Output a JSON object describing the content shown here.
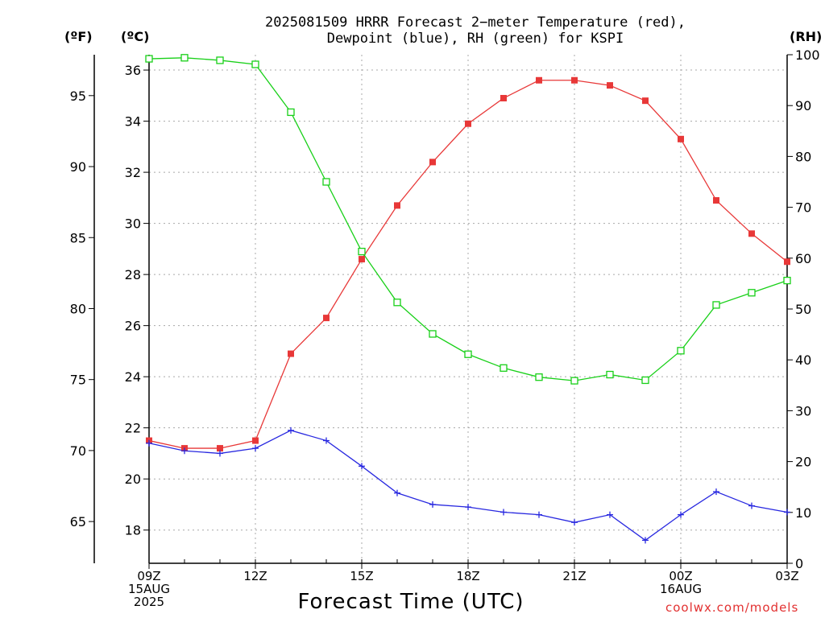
{
  "title_line1": "2025081509 HRRR Forecast 2−meter Temperature (red),",
  "title_line2": "Dewpoint (blue), RH (green) for KSPI",
  "units": {
    "f": "(ºF)",
    "c": "(ºC)",
    "rh": "(RH)"
  },
  "xlabel": "Forecast Time (UTC)",
  "credit": "coolwx.com/models",
  "colors": {
    "temperature": "#e83838",
    "dewpoint": "#2828e0",
    "rh": "#18d018",
    "grid": "#a8a8a8"
  },
  "chart_data": {
    "type": "line",
    "grid": true,
    "x_ticks": [
      {
        "i": 0,
        "lines": [
          "09Z",
          "15AUG",
          "2025"
        ]
      },
      {
        "i": 3,
        "lines": [
          "12Z"
        ]
      },
      {
        "i": 6,
        "lines": [
          "15Z"
        ]
      },
      {
        "i": 9,
        "lines": [
          "18Z"
        ]
      },
      {
        "i": 12,
        "lines": [
          "21Z"
        ]
      },
      {
        "i": 15,
        "lines": [
          "00Z",
          "16AUG"
        ]
      },
      {
        "i": 18,
        "lines": [
          "03Z"
        ]
      }
    ],
    "hours": [
      "09Z",
      "10Z",
      "11Z",
      "12Z",
      "13Z",
      "14Z",
      "15Z",
      "16Z",
      "17Z",
      "18Z",
      "19Z",
      "20Z",
      "21Z",
      "22Z",
      "23Z",
      "00Z",
      "01Z",
      "02Z",
      "03Z"
    ],
    "axes": {
      "celsius": {
        "range": [
          16.7,
          36.6
        ],
        "ticks": [
          18,
          20,
          22,
          24,
          26,
          28,
          30,
          32,
          34,
          36
        ]
      },
      "fahrenheit": {
        "ticks": [
          65,
          70,
          75,
          80,
          85,
          90,
          95
        ]
      },
      "rh": {
        "range": [
          0,
          100
        ],
        "ticks": [
          0,
          10,
          20,
          30,
          40,
          50,
          60,
          70,
          80,
          90,
          100
        ]
      }
    },
    "series": [
      {
        "key": "temperature",
        "axis": "celsius",
        "marker": "filled-square",
        "values": [
          21.5,
          21.2,
          21.2,
          21.5,
          24.9,
          26.3,
          28.6,
          30.7,
          32.4,
          33.9,
          34.9,
          35.6,
          35.6,
          35.4,
          34.8,
          33.3,
          30.9,
          29.6,
          28.5
        ]
      },
      {
        "key": "dewpoint",
        "axis": "celsius",
        "marker": "plus",
        "values": [
          21.4,
          21.1,
          21.0,
          21.2,
          21.9,
          21.5,
          20.5,
          19.45,
          19.0,
          18.9,
          18.7,
          18.6,
          18.3,
          18.6,
          17.6,
          18.6,
          19.5,
          18.95,
          18.7
        ]
      },
      {
        "key": "rh",
        "axis": "rh",
        "marker": "open-square",
        "values": [
          99.2,
          99.4,
          98.9,
          98.1,
          88.7,
          75.0,
          61.3,
          51.3,
          45.1,
          41.1,
          38.4,
          36.6,
          35.9,
          37.1,
          36.0,
          41.8,
          50.8,
          53.2,
          55.6
        ]
      }
    ]
  }
}
